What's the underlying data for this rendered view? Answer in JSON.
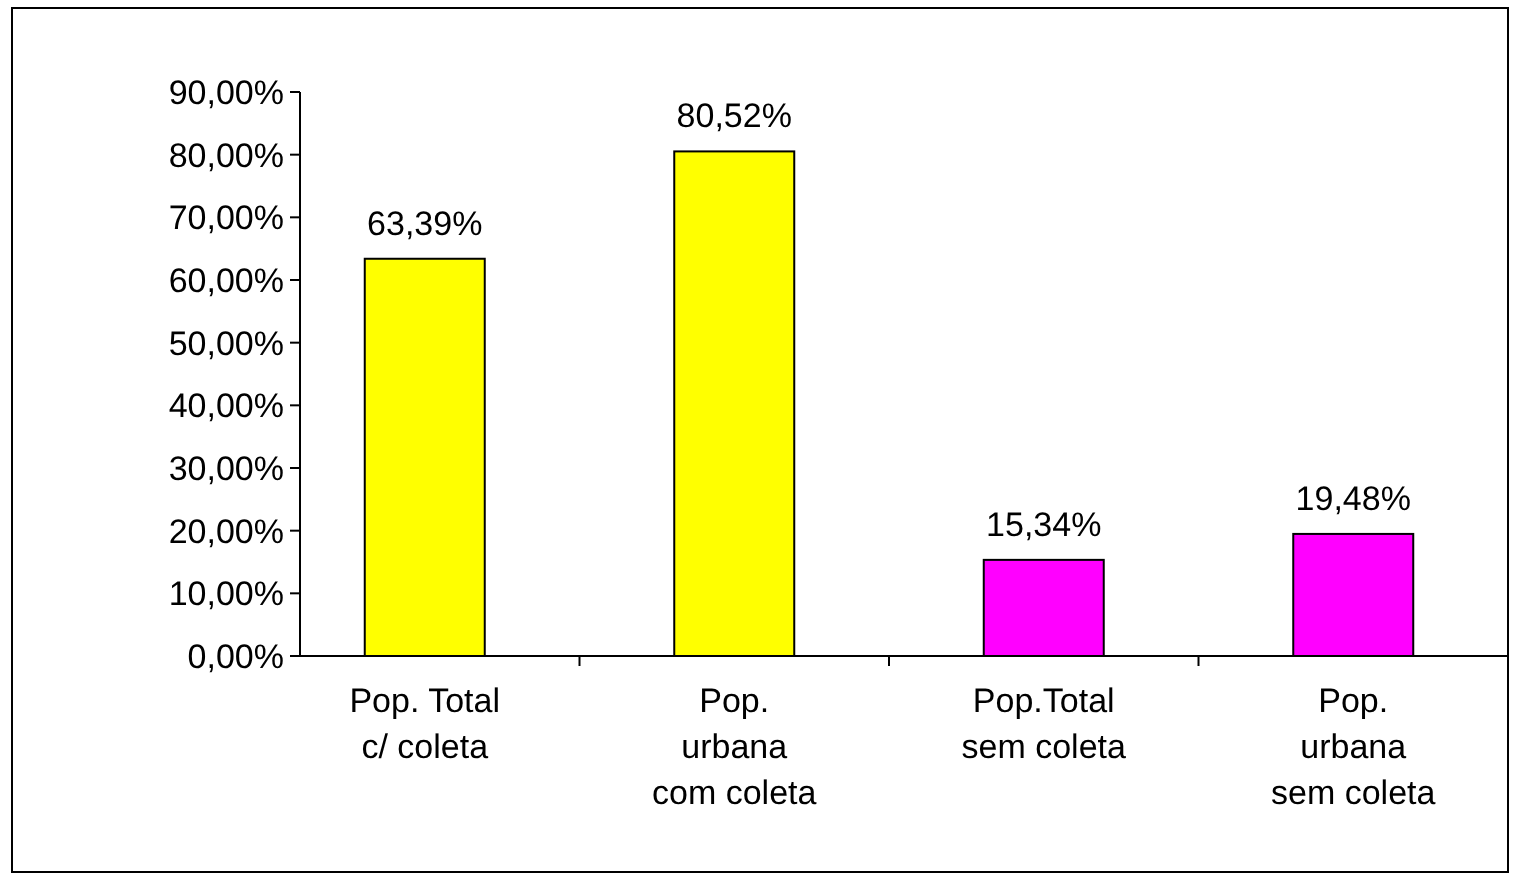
{
  "chart_data": {
    "type": "bar",
    "categories": [
      "Pop. Total\nc/ coleta",
      "Pop.\nurbana\ncom coleta",
      "Pop.Total\nsem coleta",
      "Pop.\nurbana\nsem coleta"
    ],
    "values": [
      63.39,
      80.52,
      15.34,
      19.48
    ],
    "colors": [
      "#ffff00",
      "#ffff00",
      "#ff00ff",
      "#ff00ff"
    ],
    "value_labels": [
      "63,39%",
      "80,52%",
      "15,34%",
      "19,48%"
    ],
    "ylim": [
      0,
      90
    ],
    "yticks": [
      {
        "value": 0,
        "label": "0,00%"
      },
      {
        "value": 10,
        "label": "10,00%"
      },
      {
        "value": 20,
        "label": "20,00%"
      },
      {
        "value": 30,
        "label": "30,00%"
      },
      {
        "value": 40,
        "label": "40,00%"
      },
      {
        "value": 50,
        "label": "50,00%"
      },
      {
        "value": 60,
        "label": "60,00%"
      },
      {
        "value": 70,
        "label": "70,00%"
      },
      {
        "value": 80,
        "label": "80,00%"
      },
      {
        "value": 90,
        "label": "90,00%"
      }
    ],
    "grid": false
  }
}
